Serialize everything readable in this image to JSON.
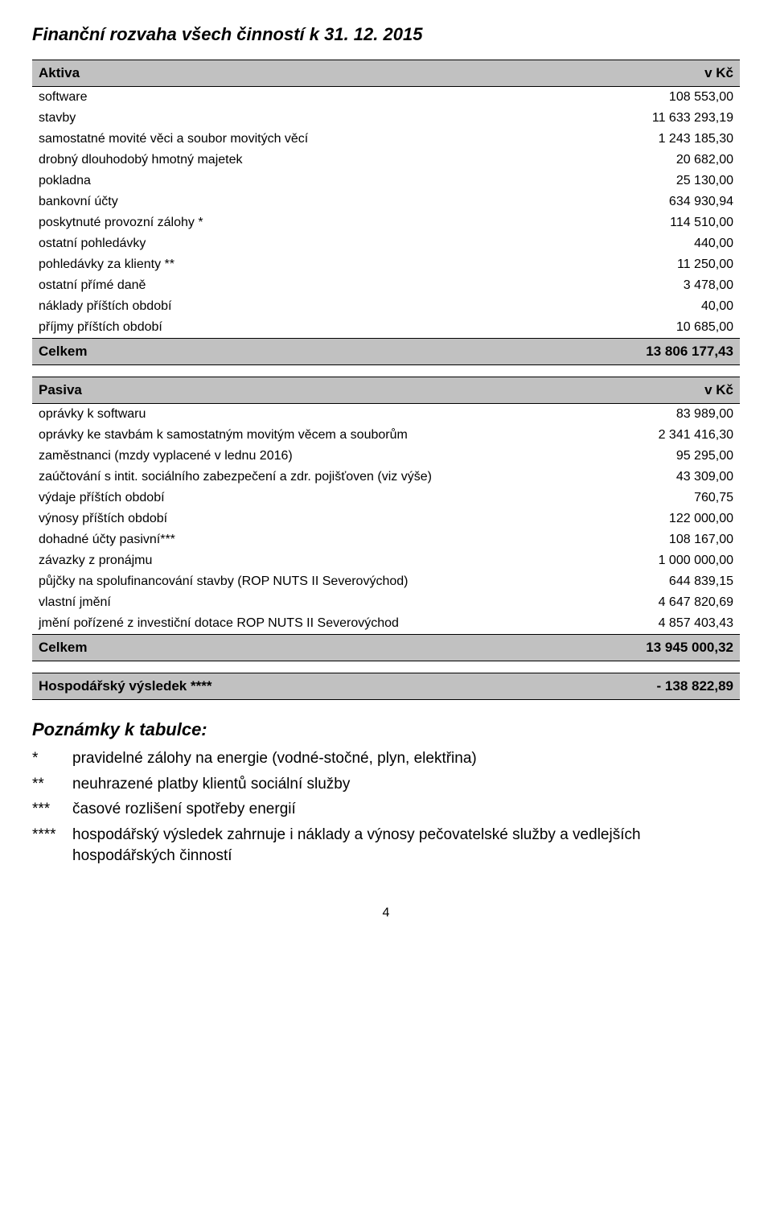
{
  "title": "Finanční rozvaha všech činností k 31. 12. 2015",
  "aktiva": {
    "header_label": "Aktiva",
    "header_unit": "v Kč",
    "rows": [
      {
        "label": "software",
        "value": "108 553,00"
      },
      {
        "label": "stavby",
        "value": "11 633 293,19"
      },
      {
        "label": "samostatné movité věci a soubor movitých věcí",
        "value": "1 243 185,30"
      },
      {
        "label": "drobný dlouhodobý hmotný majetek",
        "value": "20 682,00"
      },
      {
        "label": "pokladna",
        "value": "25 130,00"
      },
      {
        "label": "bankovní účty",
        "value": "634 930,94"
      },
      {
        "label": "poskytnuté provozní zálohy *",
        "value": "114 510,00"
      },
      {
        "label": "ostatní pohledávky",
        "value": "440,00"
      },
      {
        "label": "pohledávky za klienty **",
        "value": "11 250,00"
      },
      {
        "label": "ostatní přímé daně",
        "value": "3 478,00"
      },
      {
        "label": "náklady příštích období",
        "value": "40,00"
      },
      {
        "label": "příjmy příštích období",
        "value": "10 685,00"
      }
    ],
    "total_label": "Celkem",
    "total_value": "13 806 177,43"
  },
  "pasiva": {
    "header_label": "Pasiva",
    "header_unit": "v Kč",
    "rows": [
      {
        "label": "oprávky k softwaru",
        "value": "83 989,00"
      },
      {
        "label": "oprávky ke stavbám k samostatným movitým věcem a souborům",
        "value": "2 341 416,30"
      },
      {
        "label": "zaměstnanci (mzdy vyplacené v lednu 2016)",
        "value": "95 295,00"
      },
      {
        "label": "zaúčtování s intit. sociálního zabezpečení a zdr. pojišťoven (viz výše)",
        "value": "43 309,00"
      },
      {
        "label": "výdaje příštích období",
        "value": "760,75"
      },
      {
        "label": "výnosy příštích období",
        "value": "122 000,00"
      },
      {
        "label": "dohadné účty pasivní***",
        "value": "108 167,00"
      },
      {
        "label": "závazky z pronájmu",
        "value": "1 000 000,00"
      },
      {
        "label": "půjčky na spolufinancování stavby (ROP NUTS II Severovýchod)",
        "value": "644 839,15"
      },
      {
        "label": "vlastní jmění",
        "value": "4 647 820,69"
      },
      {
        "label": "jmění pořízené z investiční dotace ROP NUTS II Severovýchod",
        "value": "4 857 403,43"
      }
    ],
    "total_label": "Celkem",
    "total_value": "13 945 000,32"
  },
  "result": {
    "label": "Hospodářský výsledek ****",
    "value": "- 138 822,89"
  },
  "notes": {
    "title": "Poznámky k tabulce:",
    "items": [
      {
        "marker": "*",
        "text": "pravidelné zálohy na energie (vodné-stočné, plyn, elektřina)"
      },
      {
        "marker": "**",
        "text": "neuhrazené platby klientů sociální služby"
      },
      {
        "marker": "***",
        "text": "časové rozlišení spotřeby energií"
      },
      {
        "marker": "****",
        "text": "hospodářský výsledek zahrnuje i náklady a výnosy pečovatelské služby a vedlejších hospodářských činností"
      }
    ]
  },
  "page_number": "4",
  "colors": {
    "header_bg": "#c1c1c1",
    "text": "#000000",
    "background": "#ffffff"
  }
}
